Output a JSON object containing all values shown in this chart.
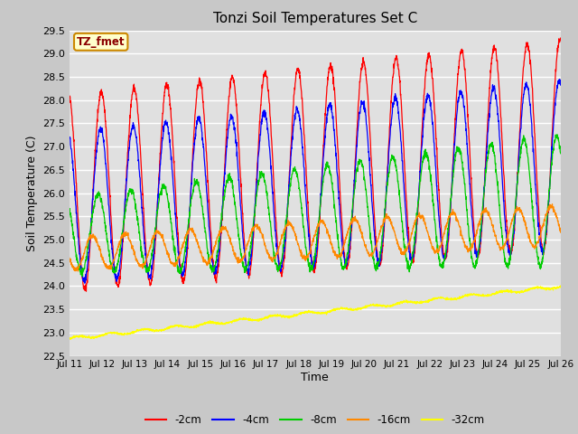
{
  "title": "Tonzi Soil Temperatures Set C",
  "xlabel": "Time",
  "ylabel": "Soil Temperature (C)",
  "ylim": [
    22.5,
    29.5
  ],
  "yticks": [
    22.5,
    23.0,
    23.5,
    24.0,
    24.5,
    25.0,
    25.5,
    26.0,
    26.5,
    27.0,
    27.5,
    28.0,
    28.5,
    29.0,
    29.5
  ],
  "series_colors": {
    "-2cm": "#ff0000",
    "-4cm": "#0000ff",
    "-8cm": "#00cc00",
    "-16cm": "#ff8800",
    "-32cm": "#ffff00"
  },
  "legend_label_box": "TZ_fmet",
  "fig_bg_color": "#c8c8c8",
  "plot_bg_color": "#e0e0e0",
  "n_points": 2160,
  "start_day": 11,
  "end_day": 26,
  "xtick_days": [
    11,
    12,
    13,
    14,
    15,
    16,
    17,
    18,
    19,
    20,
    21,
    22,
    23,
    24,
    25,
    26
  ]
}
